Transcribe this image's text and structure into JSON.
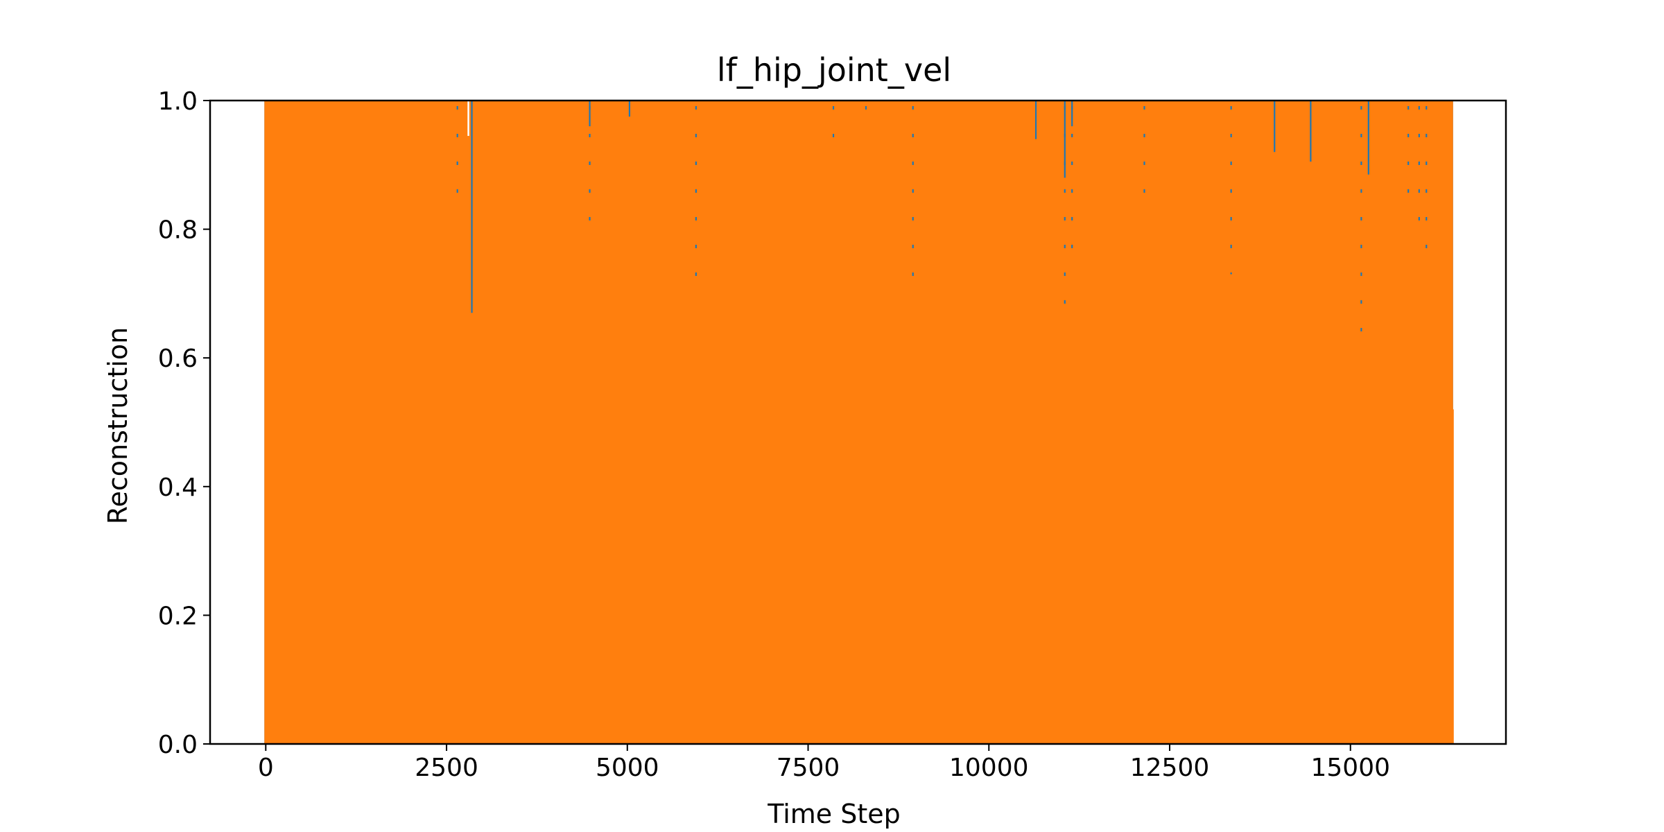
{
  "chart_data": {
    "type": "line",
    "title": "lf_hip_joint_vel",
    "xlabel": "Time Step",
    "ylabel": "Reconstruction",
    "xlim": [
      -770,
      17150
    ],
    "ylim": [
      0.0,
      1.0
    ],
    "xticks": [
      0,
      2500,
      5000,
      7500,
      10000,
      12500,
      15000
    ],
    "xtick_labels": [
      "0",
      "2500",
      "5000",
      "7500",
      "10000",
      "12500",
      "15000"
    ],
    "yticks": [
      0.0,
      0.2,
      0.4,
      0.6,
      0.8,
      1.0
    ],
    "ytick_labels": [
      "0.0",
      "0.2",
      "0.4",
      "0.6",
      "0.8",
      "1.0"
    ],
    "grid": false,
    "legend": "none",
    "series": [
      {
        "color": "#1f77b4",
        "x_range": [
          0,
          16400
        ],
        "y_range": [
          0.0,
          1.0
        ],
        "visible_dips": [
          {
            "x": 2850,
            "y_min": 0.67
          },
          {
            "x": 4480,
            "y_min": 0.96
          },
          {
            "x": 5030,
            "y_min": 0.975
          },
          {
            "x": 10650,
            "y_min": 0.94
          },
          {
            "x": 11050,
            "y_min": 0.88
          },
          {
            "x": 11150,
            "y_min": 0.96
          },
          {
            "x": 13950,
            "y_min": 0.92
          },
          {
            "x": 14450,
            "y_min": 0.905
          },
          {
            "x": 15250,
            "y_min": 0.885
          }
        ],
        "dotted_columns": [
          {
            "x": 2650,
            "y_min": 0.82
          },
          {
            "x": 4480,
            "y_min": 0.81
          },
          {
            "x": 5950,
            "y_min": 0.71
          },
          {
            "x": 7850,
            "y_min": 0.91
          },
          {
            "x": 8300,
            "y_min": 0.95
          },
          {
            "x": 8950,
            "y_min": 0.7
          },
          {
            "x": 11050,
            "y_min": 0.68
          },
          {
            "x": 11150,
            "y_min": 0.74
          },
          {
            "x": 12150,
            "y_min": 0.85
          },
          {
            "x": 13350,
            "y_min": 0.73
          },
          {
            "x": 15150,
            "y_min": 0.63
          },
          {
            "x": 15800,
            "y_min": 0.85
          },
          {
            "x": 15950,
            "y_min": 0.8
          },
          {
            "x": 16050,
            "y_min": 0.76
          }
        ]
      },
      {
        "color": "#ff7f0e",
        "x_range": [
          0,
          16400
        ],
        "y_range": [
          0.0,
          1.0
        ],
        "gaps": [
          {
            "x": 2850,
            "y_from": 0.945,
            "y_to": 1.0
          }
        ]
      }
    ]
  }
}
